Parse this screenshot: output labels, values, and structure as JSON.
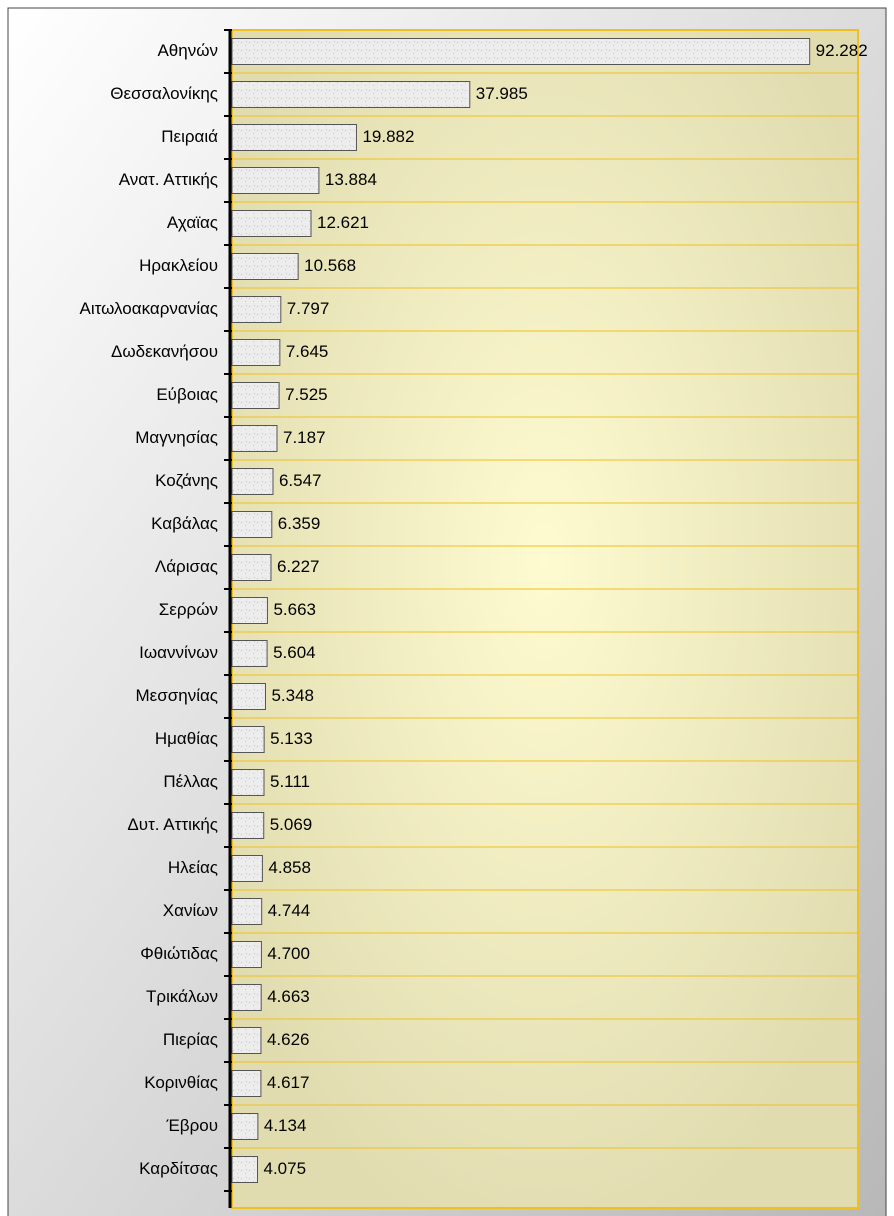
{
  "chart_data": {
    "type": "hbar",
    "categories": [
      "Αθηνών",
      "Θεσσαλονίκης",
      "Πειραιά",
      "Ανατ. Αττικής",
      "Αχαϊας",
      "Ηρακλείου",
      "Αιτωλοακαρνανίας",
      "Δωδεκανήσου",
      "Εύβοιας",
      "Μαγνησίας",
      "Κοζάνης",
      "Καβάλας",
      "Λάρισας",
      "Σερρών",
      "Ιωαννίνων",
      "Μεσσηνίας",
      "Ημαθίας",
      "Πέλλας",
      "Δυτ. Αττικής",
      "Ηλείας",
      "Χανίων",
      "Φθιώτιδας",
      "Τρικάλων",
      "Πιερίας",
      "Κορινθίας",
      "Έβρου",
      "Καρδίτσας"
    ],
    "values": [
      92282,
      37985,
      19882,
      13884,
      12621,
      10568,
      7797,
      7645,
      7525,
      7187,
      6547,
      6359,
      6227,
      5663,
      5604,
      5348,
      5133,
      5111,
      5069,
      4858,
      4744,
      4700,
      4663,
      4626,
      4617,
      4134,
      4075
    ],
    "value_labels": [
      "92.282",
      "37.985",
      "19.882",
      "13.884",
      "12.621",
      "10.568",
      "7.797",
      "7.645",
      "7.525",
      "7.187",
      "6.547",
      "6.359",
      "6.227",
      "5.663",
      "5.604",
      "5.348",
      "5.133",
      "5.111",
      "5.069",
      "4.858",
      "4.744",
      "4.700",
      "4.663",
      "4.626",
      "4.617",
      "4.134",
      "4.075"
    ],
    "color": "#e6e6e6",
    "xlim": [
      0,
      100000
    ]
  }
}
